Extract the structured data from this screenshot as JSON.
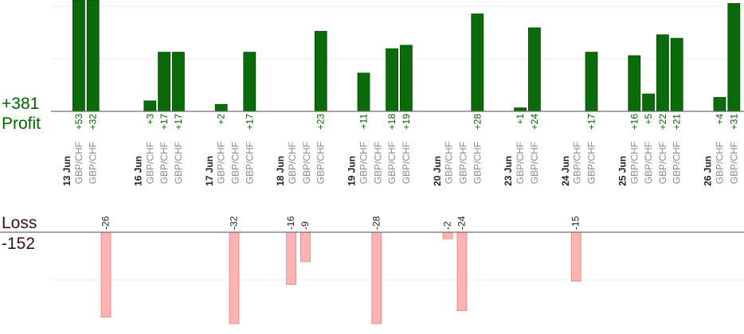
{
  "summary": {
    "profit_total": "+381",
    "profit_label": "Profit",
    "loss_label": "Loss",
    "loss_total": "-152"
  },
  "colors": {
    "profit_bar": "#0b6b0b",
    "profit_bar_edge": "#004d00",
    "profit_text": "#006400",
    "loss_bar": "#ffb3b3",
    "loss_bar_edge": "#e08080",
    "loss_text": "#3a1010",
    "pair_text": "#8a8a8a",
    "date_text": "#222222",
    "axis": "#6e6e6e",
    "grid": "#ececec"
  },
  "chart_data": {
    "type": "bar",
    "profit_ylim": [
      0,
      32
    ],
    "loss_ylim": [
      0,
      28
    ],
    "days": [
      {
        "date": "13 Jun",
        "trades": [
          {
            "pair": "GBP/CHF",
            "profit": "+53",
            "value": 53
          },
          {
            "pair": "GBP/CHF",
            "profit": "+32",
            "value": 32
          },
          {
            "pair": "",
            "loss": "-26",
            "value": -26
          }
        ]
      },
      {
        "date": "16 Jun",
        "trades": [
          {
            "pair": "GBP/CHF",
            "profit": "+3",
            "value": 3
          },
          {
            "pair": "GBP/CHF",
            "profit": "+17",
            "value": 17
          },
          {
            "pair": "GBP/CHF",
            "profit": "+17",
            "value": 17
          }
        ]
      },
      {
        "date": "17 Jun",
        "trades": [
          {
            "pair": "GBP/CHF",
            "profit": "+2",
            "value": 2
          },
          {
            "pair": "GBP/CHF",
            "loss": "-32",
            "value": -32
          },
          {
            "pair": "GBP/CHF",
            "profit": "+17",
            "value": 17
          }
        ]
      },
      {
        "date": "18 Jun",
        "trades": [
          {
            "pair": "GBP/CHF",
            "loss": "-16",
            "value": -16
          },
          {
            "pair": "GBP/CHF",
            "loss": "-9",
            "value": -9
          },
          {
            "pair": "GBP/CHF",
            "profit": "+23",
            "value": 23
          }
        ]
      },
      {
        "date": "19 Jun",
        "trades": [
          {
            "pair": "GBP/CHF",
            "profit": "+11",
            "value": 11
          },
          {
            "pair": "GBP/CHF",
            "loss": "-28",
            "value": -28
          },
          {
            "pair": "GBP/CHF",
            "profit": "+18",
            "value": 18
          },
          {
            "pair": "GBP/CHF",
            "profit": "+19",
            "value": 19
          }
        ]
      },
      {
        "date": "20 Jun",
        "trades": [
          {
            "pair": "GBP/CHF",
            "loss": "-2",
            "value": -2
          },
          {
            "pair": "GBP/CHF",
            "loss": "-24",
            "value": -24
          },
          {
            "pair": "GBP/CHF",
            "profit": "+28",
            "value": 28
          }
        ]
      },
      {
        "date": "23 Jun",
        "trades": [
          {
            "pair": "GBP/CHF",
            "profit": "+1",
            "value": 1
          },
          {
            "pair": "GBP/CHF",
            "profit": "+24",
            "value": 24
          }
        ]
      },
      {
        "date": "24 Jun",
        "trades": [
          {
            "pair": "GBP/CHF",
            "loss": "-15",
            "value": -15
          },
          {
            "pair": "GBP/CHF",
            "profit": "+17",
            "value": 17
          }
        ]
      },
      {
        "date": "25 Jun",
        "trades": [
          {
            "pair": "GBP/CHF",
            "profit": "+16",
            "value": 16
          },
          {
            "pair": "GBP/CHF",
            "profit": "+5",
            "value": 5
          },
          {
            "pair": "GBP/CHF",
            "profit": "+22",
            "value": 22
          },
          {
            "pair": "GBP/CHF",
            "profit": "+21",
            "value": 21
          }
        ]
      },
      {
        "date": "26 Jun",
        "trades": [
          {
            "pair": "GBP/CHF",
            "profit": "+4",
            "value": 4
          },
          {
            "pair": "GBP/CHF",
            "profit": "+31",
            "value": 31
          }
        ]
      }
    ]
  }
}
